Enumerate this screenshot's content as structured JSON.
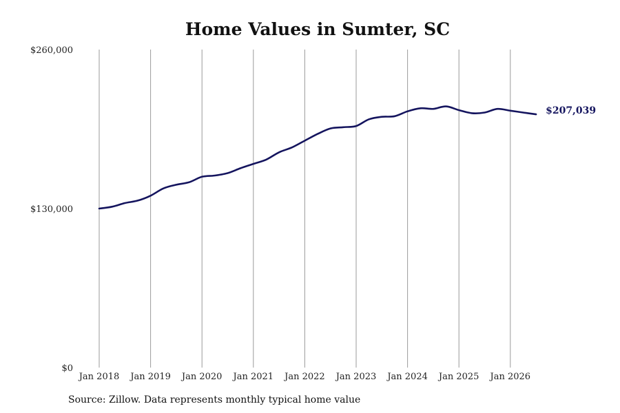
{
  "chart_data": {
    "type": "line",
    "title": "Home Values in Sumter, SC",
    "xlabel": "",
    "ylabel": "",
    "ylim": [
      0,
      260000
    ],
    "y_ticks": [
      {
        "value": 0,
        "label": "$0"
      },
      {
        "value": 130000,
        "label": "$130,000"
      },
      {
        "value": 260000,
        "label": "$260,000"
      }
    ],
    "x_ticks": [
      "Jan 2018",
      "Jan 2019",
      "Jan 2020",
      "Jan 2021",
      "Jan 2022",
      "Jan 2023",
      "Jan 2024",
      "Jan 2025",
      "Jan 2026"
    ],
    "grid": "vertical",
    "line_color": "#14145e",
    "end_label": "$207,039",
    "series": [
      {
        "x": [
          "2018-01",
          "2018-04",
          "2018-07",
          "2018-10",
          "2019-01",
          "2019-04",
          "2019-07",
          "2019-10",
          "2020-01",
          "2020-04",
          "2020-07",
          "2020-10",
          "2021-01",
          "2021-04",
          "2021-07",
          "2021-10",
          "2022-01",
          "2022-04",
          "2022-07",
          "2022-10",
          "2023-01",
          "2023-04",
          "2023-07",
          "2023-10",
          "2024-01",
          "2024-04",
          "2024-07",
          "2024-10",
          "2025-01",
          "2025-04",
          "2025-07",
          "2025-10",
          "2026-01",
          "2026-04",
          "2026-07"
        ],
        "values": [
          130000,
          131500,
          134500,
          136500,
          140500,
          146500,
          149500,
          151500,
          156000,
          157000,
          159000,
          163000,
          166500,
          170000,
          176000,
          180000,
          185500,
          191000,
          195500,
          196500,
          197500,
          203000,
          205000,
          205500,
          209500,
          212000,
          211500,
          213500,
          210500,
          208000,
          208500,
          211500,
          210000,
          208500,
          207039
        ]
      }
    ]
  },
  "source": "Source: Zillow. Data represents monthly typical home value"
}
